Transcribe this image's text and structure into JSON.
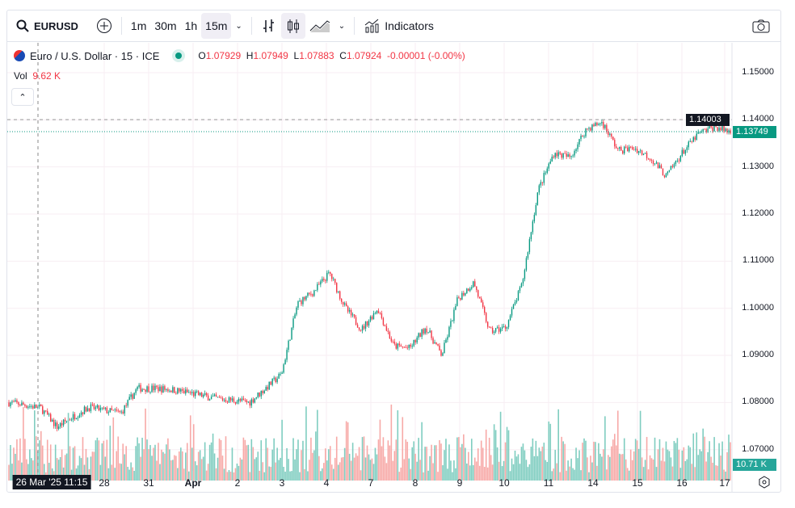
{
  "toolbar": {
    "symbol": "EURUSD",
    "intervals": [
      "1m",
      "30m",
      "1h",
      "15m"
    ],
    "selected_interval": "15m",
    "indicators": "Indicators"
  },
  "legend": {
    "name": "Euro / U.S. Dollar · 15 · ICE",
    "o_label": "O",
    "o": "1.07929",
    "h_label": "H",
    "h": "1.07949",
    "l_label": "L",
    "l": "1.07883",
    "c_label": "C",
    "c": "1.07924",
    "change": "-0.00001 (-0.00%)"
  },
  "volume": {
    "label": "Vol",
    "value": "9.62 K",
    "last_tag": "10.71 K"
  },
  "price_axis": {
    "ticks": [
      "1.15000",
      "1.14000",
      "1.13000",
      "1.12000",
      "1.11000",
      "1.10000",
      "1.09000",
      "1.08000",
      "1.07000"
    ],
    "crosshair_price": "1.14003",
    "last_price": "1.13749"
  },
  "date_axis": {
    "labels": [
      "28",
      "31",
      "Apr",
      "2",
      "3",
      "4",
      "7",
      "8",
      "9",
      "10",
      "11",
      "14",
      "15",
      "16",
      "17"
    ],
    "crosshair_label": "26 Mar '25   11:15"
  },
  "colors": {
    "up": "#089981",
    "down": "#f23645",
    "up_vol": "#7fcdc0",
    "down_vol": "#f7a9a7"
  },
  "chart_data": {
    "type": "candlestick",
    "symbol": "EURUSD",
    "timeframe": "15",
    "ylim": [
      1.065,
      1.1535
    ],
    "approx_close_path": [
      1.08,
      1.0795,
      1.0788,
      1.0748,
      1.077,
      1.079,
      1.0783,
      1.0778,
      1.083,
      1.083,
      1.0828,
      1.0822,
      1.0815,
      1.0808,
      1.0805,
      1.08,
      1.083,
      1.086,
      1.101,
      1.1035,
      1.1075,
      1.1,
      1.0955,
      1.1,
      1.092,
      1.0915,
      1.096,
      1.09,
      1.102,
      1.1055,
      1.095,
      1.096,
      1.105,
      1.125,
      1.133,
      1.132,
      1.138,
      1.1395,
      1.1335,
      1.134,
      1.132,
      1.128,
      1.133,
      1.137,
      1.1385,
      1.1375
    ]
  }
}
